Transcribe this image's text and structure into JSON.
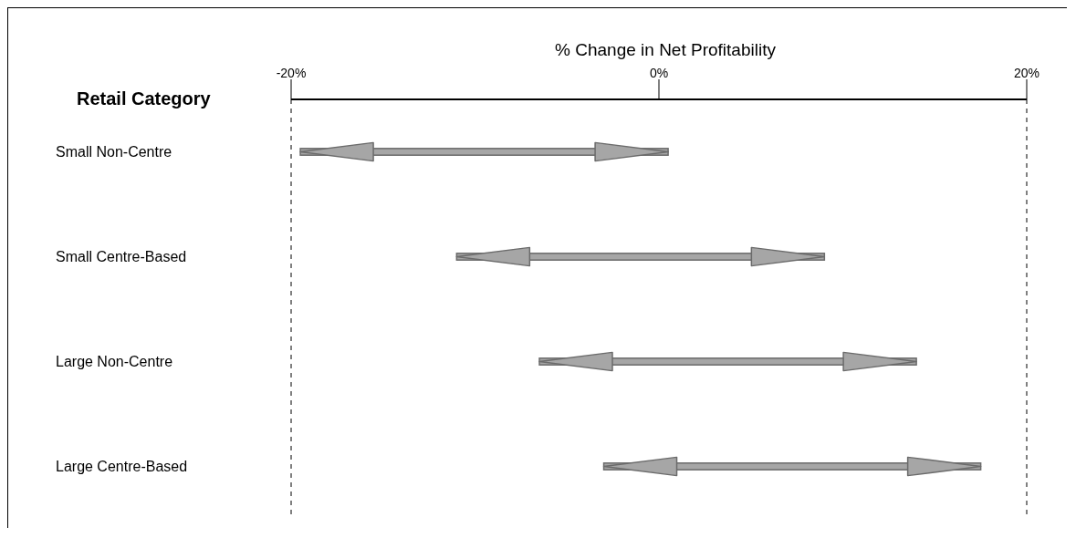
{
  "chart_data": {
    "type": "bar",
    "orientation": "horizontal",
    "xlabel": "% Change in Net Profitability",
    "ylabel": "Retail Category",
    "categories": [
      "Small Non-Centre",
      "Small Centre-Based",
      "Large Non-Centre",
      "Large Centre-Based"
    ],
    "base": [
      -19.5,
      -11,
      -6.5,
      -3
    ],
    "values": [
      20,
      20,
      20.5,
      20.5
    ],
    "color": "#a6a6a6",
    "xlim": [
      -20,
      20
    ],
    "xticks": [
      {
        "value": -20,
        "label": "-20%"
      },
      {
        "value": 0,
        "label": "0%"
      },
      {
        "value": 20,
        "label": "20%"
      }
    ],
    "ref_lines": [
      {
        "axis": "x",
        "value": -20,
        "line_style": "dashed",
        "color": "#000000"
      },
      {
        "axis": "x",
        "value": 20,
        "line_style": "dashed",
        "color": "#000000"
      }
    ],
    "grid": false,
    "legend": false
  }
}
